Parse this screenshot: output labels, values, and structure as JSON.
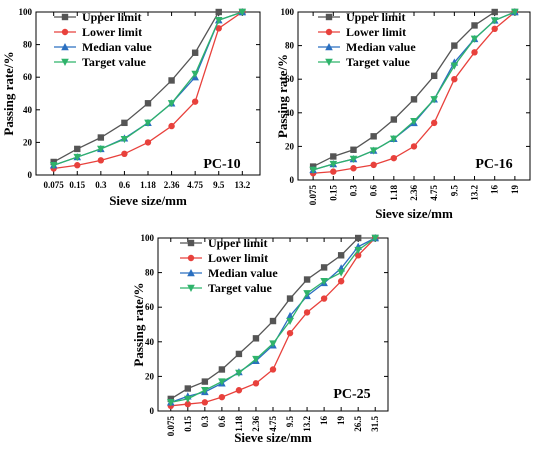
{
  "chart_data": [
    {
      "type": "line",
      "panel_label": "PC-10",
      "xlabel": "Sieve size/mm",
      "ylabel": "Passing rate/%",
      "ylim": [
        0,
        100
      ],
      "yticks": [
        0,
        20,
        40,
        60,
        80,
        100
      ],
      "grid": false,
      "legend_position": "top-left",
      "categories": [
        "0.075",
        "0.15",
        "0.3",
        "0.6",
        "1.18",
        "2.36",
        "4.75",
        "9.5",
        "13.2"
      ],
      "series": [
        {
          "name": "Upper limit",
          "color": "#555555",
          "marker": "square",
          "values": [
            8,
            16,
            23,
            32,
            44,
            58,
            75,
            100,
            100
          ]
        },
        {
          "name": "Lower limit",
          "color": "#e8413c",
          "marker": "circle",
          "values": [
            4,
            6,
            9,
            13,
            20,
            30,
            45,
            90,
            100
          ]
        },
        {
          "name": "Median value",
          "color": "#2a6fc0",
          "marker": "triangle-up",
          "values": [
            6,
            11,
            16,
            22.5,
            32,
            44,
            60,
            95,
            100
          ]
        },
        {
          "name": "Target value",
          "color": "#2fb36b",
          "marker": "triangle-down",
          "values": [
            6,
            11,
            16,
            22,
            32,
            44,
            62,
            95,
            100
          ]
        }
      ]
    },
    {
      "type": "line",
      "panel_label": "PC-16",
      "xlabel": "Sieve size/mm",
      "ylabel": "Passing rate/%",
      "ylim": [
        0,
        100
      ],
      "yticks": [
        0,
        20,
        40,
        60,
        80,
        100
      ],
      "grid": false,
      "legend_position": "top-left",
      "categories": [
        "0.075",
        "0.15",
        "0.3",
        "0.6",
        "1.18",
        "2.36",
        "4.75",
        "9.5",
        "13.2",
        "16",
        "19"
      ],
      "series": [
        {
          "name": "Upper limit",
          "color": "#555555",
          "marker": "square",
          "values": [
            8,
            14,
            18,
            26,
            36,
            48,
            62,
            80,
            92,
            100,
            100
          ]
        },
        {
          "name": "Lower limit",
          "color": "#e8413c",
          "marker": "circle",
          "values": [
            4,
            5,
            7,
            9,
            13,
            20,
            34,
            60,
            76,
            90,
            100
          ]
        },
        {
          "name": "Median value",
          "color": "#2a6fc0",
          "marker": "triangle-up",
          "values": [
            6,
            9.5,
            12.5,
            17.5,
            24.5,
            34,
            48,
            70,
            84,
            95,
            100
          ]
        },
        {
          "name": "Target value",
          "color": "#2fb36b",
          "marker": "triangle-down",
          "values": [
            6,
            9.5,
            12.5,
            17.5,
            24.5,
            35,
            48,
            68,
            84,
            95,
            100
          ]
        }
      ]
    },
    {
      "type": "line",
      "panel_label": "PC-25",
      "xlabel": "Sieve size/mm",
      "ylabel": "Passing rate/%",
      "ylim": [
        0,
        100
      ],
      "yticks": [
        0,
        20,
        40,
        60,
        80,
        100
      ],
      "grid": false,
      "legend_position": "top-left",
      "categories": [
        "0.075",
        "0.15",
        "0.3",
        "0.6",
        "1.18",
        "2.36",
        "4.75",
        "9.5",
        "13.2",
        "16",
        "19",
        "26.5",
        "31.5"
      ],
      "series": [
        {
          "name": "Upper limit",
          "color": "#555555",
          "marker": "square",
          "values": [
            7,
            13,
            17,
            24,
            33,
            42,
            52,
            65,
            76,
            83,
            90,
            100,
            100
          ]
        },
        {
          "name": "Lower limit",
          "color": "#e8413c",
          "marker": "circle",
          "values": [
            3,
            4,
            5,
            8,
            12,
            16,
            24,
            45,
            57,
            65,
            75,
            90,
            100
          ]
        },
        {
          "name": "Median value",
          "color": "#2a6fc0",
          "marker": "triangle-up",
          "values": [
            5,
            8.5,
            11,
            16,
            22.5,
            29,
            38,
            55,
            66.5,
            74,
            82.5,
            95,
            100
          ]
        },
        {
          "name": "Target value",
          "color": "#2fb36b",
          "marker": "triangle-down",
          "values": [
            5,
            7,
            12,
            17,
            22,
            30,
            39,
            52,
            68,
            75,
            80,
            93,
            100
          ]
        }
      ]
    }
  ]
}
